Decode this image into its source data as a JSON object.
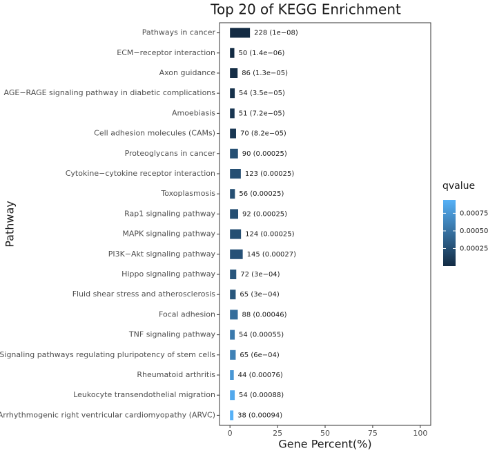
{
  "chart_data": {
    "type": "bar",
    "orientation": "horizontal",
    "title": "Top 20 of KEGG Enrichment",
    "x_label": "Gene Percent(%)",
    "y_label": "Pathway",
    "categories": [
      "Pathways in cancer",
      "ECM−receptor interaction",
      "Axon guidance",
      "AGE−RAGE signaling pathway in diabetic complications",
      "Amoebiasis",
      "Cell adhesion molecules (CAMs)",
      "Proteoglycans in cancer",
      "Cytokine−cytokine receptor interaction",
      "Toxoplasmosis",
      "Rap1 signaling pathway",
      "MAPK signaling pathway",
      "PI3K−Akt signaling pathway",
      "Hippo signaling pathway",
      "Fluid shear stress and atherosclerosis",
      "Focal adhesion",
      "TNF signaling pathway",
      "Signaling pathways regulating pluripotency of stem cells",
      "Rheumatoid arthritis",
      "Leukocyte transendothelial migration",
      "Arrhythmogenic right ventricular cardiomyopathy (ARVC)"
    ],
    "values": [
      10.5,
      2.3,
      4.0,
      2.5,
      2.4,
      3.2,
      4.2,
      5.7,
      2.6,
      4.3,
      5.8,
      6.7,
      3.3,
      3.0,
      4.1,
      2.5,
      3.0,
      2.0,
      2.5,
      1.8
    ],
    "qvalues": [
      1e-08,
      1.4e-06,
      1.3e-05,
      3.5e-05,
      7.2e-05,
      8.2e-05,
      0.00025,
      0.00025,
      0.00025,
      0.00025,
      0.00025,
      0.00027,
      0.0003,
      0.0003,
      0.00046,
      0.00055,
      0.0006,
      0.00076,
      0.00088,
      0.00094
    ],
    "value_labels": [
      "228 (1e−08)",
      "50 (1.4e−06)",
      "86 (1.3e−05)",
      "54 (3.5e−05)",
      "51 (7.2e−05)",
      "70 (8.2e−05)",
      "90 (0.00025)",
      "123 (0.00025)",
      "56 (0.00025)",
      "92 (0.00025)",
      "124 (0.00025)",
      "145 (0.00027)",
      "72 (3e−04)",
      "65 (3e−04)",
      "88 (0.00046)",
      "54 (0.00055)",
      "65 (6e−04)",
      "44 (0.00076)",
      "54 (0.00088)",
      "38 (0.00094)"
    ],
    "xlim": [
      -5.5,
      105.5
    ],
    "xticks": [
      0,
      25,
      50,
      75,
      100
    ],
    "grid": false,
    "colorbar": {
      "title": "qvalue",
      "lim": [
        1e-08,
        0.00094
      ],
      "low": "#132B43",
      "high": "#56B1F7",
      "ticks": [
        {
          "value": 0.00025,
          "label": "0.00025"
        },
        {
          "value": 0.0005,
          "label": "0.00050"
        },
        {
          "value": 0.00075,
          "label": "0.00075"
        }
      ]
    }
  }
}
